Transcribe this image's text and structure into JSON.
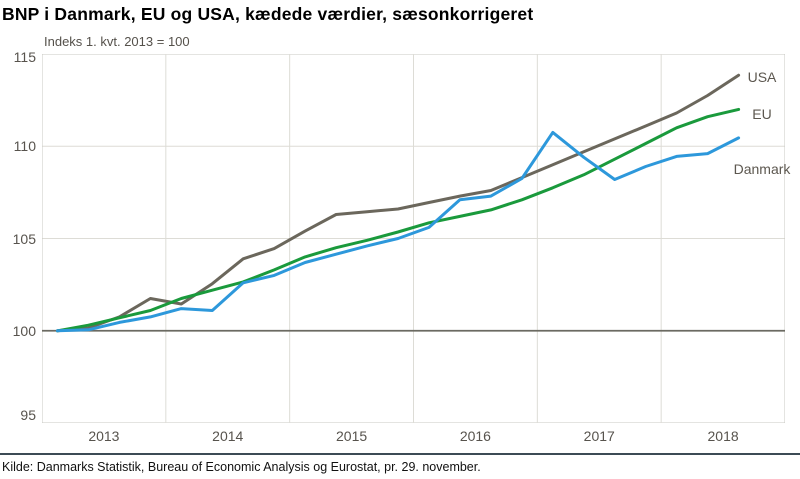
{
  "title": "BNP i Danmark, EU og USA, kædede værdier, sæsonkorrigeret",
  "subtitle": "Indeks 1. kvt. 2013 = 100",
  "source": "Kilde: Danmarks Statistik, Bureau of Economic Analysis og Eurostat, pr. 29. november.",
  "colors": {
    "grid": "#dddcd6",
    "plot_border": "#c9c9c3",
    "baseline": "#6b6a62",
    "axis_label": "#57534d",
    "series_label": "#5c574f",
    "divider": "#3c4b55",
    "usa": "#6b675c",
    "eu": "#1a9a3c",
    "danmark": "#2d98db"
  },
  "chart_data": {
    "type": "line",
    "title": "BNP i Danmark, EU og USA, kædede værdier, sæsonkorrigeret",
    "subtitle_note": "Indeks 1. kvt. 2013 = 100",
    "ylim": [
      95,
      115
    ],
    "yticks": [
      95,
      100,
      105,
      110,
      115
    ],
    "baseline_value": 100,
    "grid": true,
    "legend_position": "end-of-line labels inside plot, right",
    "x_year_labels": [
      "2013",
      "2014",
      "2015",
      "2016",
      "2017",
      "2018"
    ],
    "x": [
      "2013K1",
      "2013K2",
      "2013K3",
      "2013K4",
      "2014K1",
      "2014K2",
      "2014K3",
      "2014K4",
      "2015K1",
      "2015K2",
      "2015K3",
      "2015K4",
      "2016K1",
      "2016K2",
      "2016K3",
      "2016K4",
      "2017K1",
      "2017K2",
      "2017K3",
      "2017K4",
      "2018K1",
      "2018K2",
      "2018K3"
    ],
    "series": [
      {
        "name": "USA",
        "color": "#6b675c",
        "label_dy": 2,
        "values": [
          100.0,
          100.15,
          100.75,
          101.75,
          101.45,
          102.55,
          103.9,
          104.45,
          105.4,
          106.3,
          106.45,
          106.6,
          106.95,
          107.3,
          107.6,
          108.3,
          109.0,
          109.7,
          110.4,
          111.1,
          111.8,
          112.75,
          113.85
        ]
      },
      {
        "name": "EU",
        "color": "#1a9a3c",
        "label_dy": 5,
        "values": [
          100.0,
          100.3,
          100.7,
          101.1,
          101.75,
          102.2,
          102.65,
          103.3,
          104.0,
          104.5,
          104.9,
          105.35,
          105.85,
          106.2,
          106.55,
          107.1,
          107.75,
          108.45,
          109.3,
          110.15,
          111.0,
          111.6,
          112.0
        ]
      },
      {
        "name": "Danmark",
        "color": "#2d98db",
        "label_dy": 31,
        "values": [
          100.0,
          100.05,
          100.45,
          100.75,
          101.2,
          101.1,
          102.6,
          103.0,
          103.7,
          104.15,
          104.6,
          105.0,
          105.6,
          107.1,
          107.3,
          108.25,
          110.75,
          109.4,
          108.2,
          108.9,
          109.45,
          109.6,
          110.45
        ]
      }
    ]
  }
}
